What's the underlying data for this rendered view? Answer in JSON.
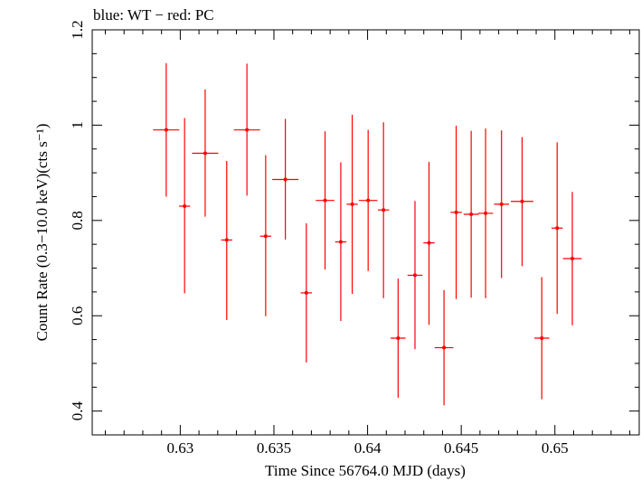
{
  "chart_data": {
    "type": "scatter",
    "title": "blue: WT − red: PC",
    "xlabel": "Time Since 56764.0 MJD (days)",
    "ylabel": "Count Rate (0.3−10.0 keV)(cts s⁻¹)",
    "xlim": [
      0.6253,
      0.6545
    ],
    "ylim": [
      0.35,
      1.2
    ],
    "x_ticks": [
      0.63,
      0.635,
      0.64,
      0.645,
      0.65
    ],
    "x_tick_labels": [
      "0.63",
      "0.635",
      "0.64",
      "0.645",
      "0.65"
    ],
    "y_ticks": [
      0.4,
      0.6,
      0.8,
      1.0,
      1.2
    ],
    "y_tick_labels": [
      "0.4",
      "0.6",
      "0.8",
      "1",
      "1.2"
    ],
    "grid": false,
    "series": [
      {
        "name": "PC",
        "color": "#ff0000",
        "points": [
          {
            "x": 0.62925,
            "xerr": 0.0007,
            "y": 0.99,
            "yerr_lo": 0.14,
            "yerr_hi": 0.14
          },
          {
            "x": 0.63023,
            "xerr": 0.0003,
            "y": 0.83,
            "yerr_lo": 0.183,
            "yerr_hi": 0.185
          },
          {
            "x": 0.63133,
            "xerr": 0.0007,
            "y": 0.941,
            "yerr_lo": 0.133,
            "yerr_hi": 0.134
          },
          {
            "x": 0.63248,
            "xerr": 0.0003,
            "y": 0.759,
            "yerr_lo": 0.168,
            "yerr_hi": 0.166
          },
          {
            "x": 0.63356,
            "xerr": 0.0007,
            "y": 0.99,
            "yerr_lo": 0.138,
            "yerr_hi": 0.139
          },
          {
            "x": 0.63456,
            "xerr": 0.0003,
            "y": 0.767,
            "yerr_lo": 0.168,
            "yerr_hi": 0.17
          },
          {
            "x": 0.63561,
            "xerr": 0.0007,
            "y": 0.886,
            "yerr_lo": 0.126,
            "yerr_hi": 0.127
          },
          {
            "x": 0.63673,
            "xerr": 0.0003,
            "y": 0.648,
            "yerr_lo": 0.146,
            "yerr_hi": 0.146
          },
          {
            "x": 0.63773,
            "xerr": 0.0005,
            "y": 0.842,
            "yerr_lo": 0.145,
            "yerr_hi": 0.145
          },
          {
            "x": 0.63857,
            "xerr": 0.0003,
            "y": 0.755,
            "yerr_lo": 0.166,
            "yerr_hi": 0.167
          },
          {
            "x": 0.63918,
            "xerr": 0.0003,
            "y": 0.834,
            "yerr_lo": 0.188,
            "yerr_hi": 0.188
          },
          {
            "x": 0.64003,
            "xerr": 0.0005,
            "y": 0.842,
            "yerr_lo": 0.148,
            "yerr_hi": 0.148
          },
          {
            "x": 0.64085,
            "xerr": 0.0003,
            "y": 0.822,
            "yerr_lo": 0.185,
            "yerr_hi": 0.184
          },
          {
            "x": 0.64163,
            "xerr": 0.0004,
            "y": 0.553,
            "yerr_lo": 0.125,
            "yerr_hi": 0.125
          },
          {
            "x": 0.64253,
            "xerr": 0.0004,
            "y": 0.685,
            "yerr_lo": 0.155,
            "yerr_hi": 0.156
          },
          {
            "x": 0.64328,
            "xerr": 0.0003,
            "y": 0.753,
            "yerr_lo": 0.172,
            "yerr_hi": 0.17
          },
          {
            "x": 0.64408,
            "xerr": 0.0005,
            "y": 0.533,
            "yerr_lo": 0.121,
            "yerr_hi": 0.121
          },
          {
            "x": 0.64473,
            "xerr": 0.0003,
            "y": 0.817,
            "yerr_lo": 0.182,
            "yerr_hi": 0.182
          },
          {
            "x": 0.64553,
            "xerr": 0.0004,
            "y": 0.813,
            "yerr_lo": 0.175,
            "yerr_hi": 0.175
          },
          {
            "x": 0.6463,
            "xerr": 0.0004,
            "y": 0.815,
            "yerr_lo": 0.178,
            "yerr_hi": 0.178
          },
          {
            "x": 0.64715,
            "xerr": 0.0004,
            "y": 0.834,
            "yerr_lo": 0.155,
            "yerr_hi": 0.155
          },
          {
            "x": 0.64825,
            "xerr": 0.0006,
            "y": 0.84,
            "yerr_lo": 0.136,
            "yerr_hi": 0.135
          },
          {
            "x": 0.6493,
            "xerr": 0.0004,
            "y": 0.553,
            "yerr_lo": 0.128,
            "yerr_hi": 0.128
          },
          {
            "x": 0.65012,
            "xerr": 0.0003,
            "y": 0.784,
            "yerr_lo": 0.18,
            "yerr_hi": 0.18
          },
          {
            "x": 0.65093,
            "xerr": 0.0005,
            "y": 0.72,
            "yerr_lo": 0.14,
            "yerr_hi": 0.14
          }
        ]
      }
    ]
  }
}
